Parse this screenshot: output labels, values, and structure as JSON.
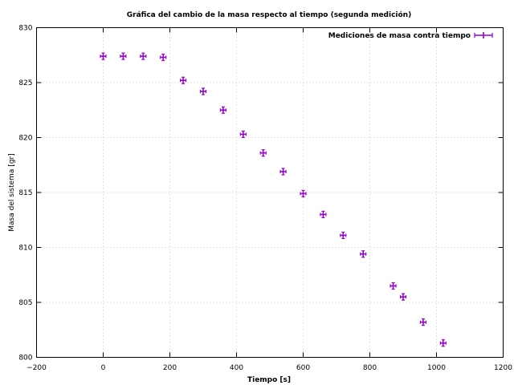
{
  "chart_data": {
    "type": "scatter",
    "title": "Gráfica del cambio de la masa respecto al tiempo (segunda medición)",
    "xlabel": "Tiempo [s]",
    "ylabel": "Masa del sistema [gr]",
    "xlim": [
      -200,
      1200
    ],
    "ylim": [
      800,
      830
    ],
    "xticks": [
      -200,
      0,
      200,
      400,
      600,
      800,
      1000,
      1200
    ],
    "yticks": [
      800,
      805,
      810,
      815,
      820,
      825,
      830
    ],
    "xtick_labels": [
      "−200",
      "0",
      "200",
      "400",
      "600",
      "800",
      "1000",
      "1200"
    ],
    "ytick_labels": [
      "800",
      "805",
      "810",
      "815",
      "820",
      "825",
      "830"
    ],
    "grid": true,
    "legend_position": "top-right",
    "series": [
      {
        "name": "Mediciones de masa contra tiempo",
        "color": "#9400d3",
        "error_bars": true,
        "x": [
          0,
          60,
          120,
          180,
          240,
          300,
          360,
          420,
          480,
          540,
          600,
          660,
          720,
          780,
          870,
          900,
          960,
          1020
        ],
        "y": [
          827.4,
          827.4,
          827.4,
          827.3,
          825.2,
          824.2,
          822.5,
          820.3,
          818.6,
          816.9,
          814.9,
          813.0,
          811.1,
          809.4,
          806.5,
          805.5,
          803.2,
          801.3
        ]
      }
    ]
  }
}
